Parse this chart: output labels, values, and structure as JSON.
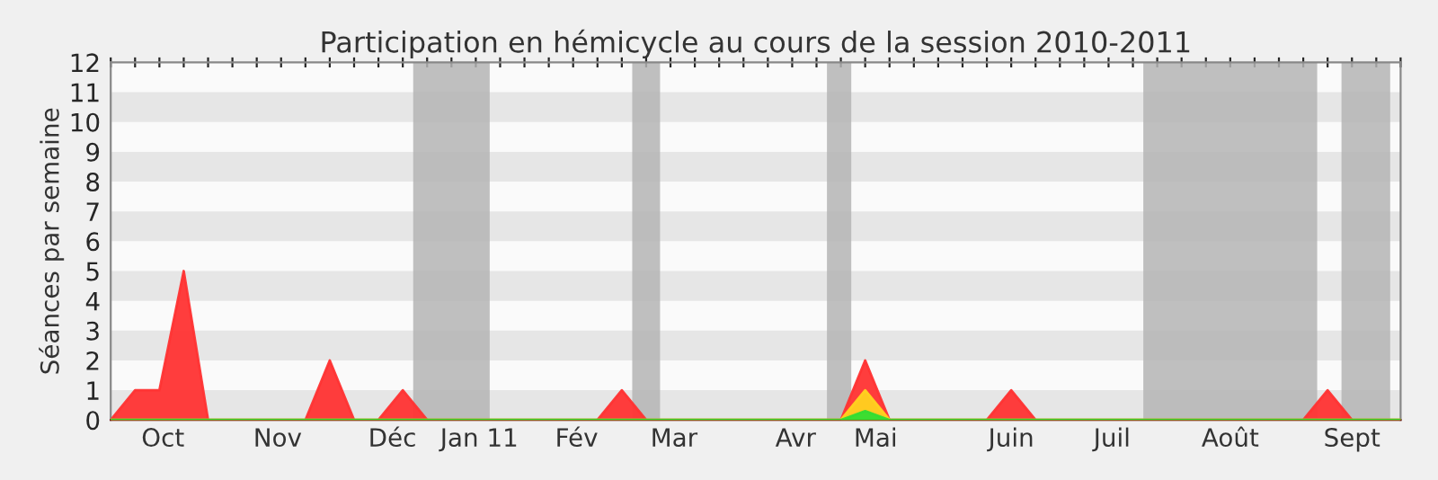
{
  "chart_data": {
    "type": "area",
    "title": "Participation en hémicycle au cours de la session 2010-2011",
    "ylabel": "Séances par semaine",
    "x": [
      "2010-09-27",
      "2010-10-04",
      "2010-10-11",
      "2010-10-18",
      "2010-10-25",
      "2010-11-01",
      "2010-11-08",
      "2010-11-15",
      "2010-11-22",
      "2010-11-29",
      "2010-12-06",
      "2010-12-13",
      "2010-12-20",
      "2010-12-27",
      "2011-01-03",
      "2011-01-10",
      "2011-01-17",
      "2011-01-24",
      "2011-01-31",
      "2011-02-07",
      "2011-02-14",
      "2011-02-21",
      "2011-02-28",
      "2011-03-07",
      "2011-03-14",
      "2011-03-21",
      "2011-03-28",
      "2011-04-04",
      "2011-04-11",
      "2011-04-18",
      "2011-04-25",
      "2011-05-02",
      "2011-05-09",
      "2011-05-16",
      "2011-05-23",
      "2011-05-30",
      "2011-06-06",
      "2011-06-13",
      "2011-06-20",
      "2011-06-27",
      "2011-07-04",
      "2011-07-11",
      "2011-07-18",
      "2011-07-25",
      "2011-08-01",
      "2011-08-08",
      "2011-08-15",
      "2011-08-22",
      "2011-08-29",
      "2011-09-05",
      "2011-09-12",
      "2011-09-19",
      "2011-09-26",
      "2011-10-03"
    ],
    "series": [
      {
        "color": "#ff3333",
        "values": [
          0,
          1,
          1,
          5,
          0,
          0,
          0,
          0,
          0,
          2,
          0,
          0,
          1,
          0,
          0,
          0,
          0,
          0,
          0,
          0,
          0,
          1,
          0,
          0,
          0,
          0,
          0,
          0,
          0,
          0,
          0,
          2,
          0,
          0,
          0,
          0,
          0,
          1,
          0,
          0,
          0,
          0,
          0,
          0,
          0,
          0,
          0,
          0,
          0,
          0,
          1,
          0,
          0,
          0
        ]
      },
      {
        "color": "#ffd21f",
        "values": [
          0,
          0,
          0,
          0,
          0,
          0,
          0,
          0,
          0,
          0,
          0,
          0,
          0,
          0,
          0,
          0,
          0,
          0,
          0,
          0,
          0,
          0,
          0,
          0,
          0,
          0,
          0,
          0,
          0,
          0,
          0,
          1,
          0,
          0,
          0,
          0,
          0,
          0,
          0,
          0,
          0,
          0,
          0,
          0,
          0,
          0,
          0,
          0,
          0,
          0,
          0,
          0,
          0,
          0
        ]
      },
      {
        "color": "#33dd33",
        "values": [
          0,
          0,
          0,
          0,
          0,
          0,
          0,
          0,
          0,
          0,
          0,
          0,
          0,
          0,
          0,
          0,
          0,
          0,
          0,
          0,
          0,
          0,
          0,
          0,
          0,
          0,
          0,
          0,
          0,
          0,
          0,
          0.3,
          0,
          0,
          0,
          0,
          0,
          0,
          0,
          0,
          0,
          0,
          0,
          0,
          0,
          0,
          0,
          0,
          0,
          0,
          0,
          0,
          0,
          0
        ]
      }
    ],
    "bands": [
      {
        "axis": "x",
        "from": "2010-12-23",
        "to": "2011-01-14",
        "color": "#b4b4b4"
      },
      {
        "axis": "x",
        "from": "2011-02-24",
        "to": "2011-03-04",
        "color": "#b4b4b4"
      },
      {
        "axis": "x",
        "from": "2011-04-21",
        "to": "2011-04-28",
        "color": "#b4b4b4"
      },
      {
        "axis": "x",
        "from": "2011-07-21",
        "to": "2011-09-09",
        "color": "#b4b4b4"
      },
      {
        "axis": "x",
        "from": "2011-09-16",
        "to": "2011-09-30",
        "color": "#b4b4b4"
      }
    ],
    "xlim": [
      "2010-09-27",
      "2011-10-03"
    ],
    "xticks": [
      {
        "value": "2010-09-27",
        "label": null
      },
      {
        "value": "2010-10-04",
        "label": null
      },
      {
        "value": "2010-10-11",
        "label": null
      },
      {
        "value": "2010-10-18",
        "label": null
      },
      {
        "value": "2010-10-25",
        "label": null
      },
      {
        "value": "2010-11-01",
        "label": null
      },
      {
        "value": "2010-11-08",
        "label": null
      },
      {
        "value": "2010-11-15",
        "label": null
      },
      {
        "value": "2010-11-22",
        "label": null
      },
      {
        "value": "2010-11-29",
        "label": null
      },
      {
        "value": "2010-12-06",
        "label": null
      },
      {
        "value": "2010-12-13",
        "label": null
      },
      {
        "value": "2010-12-20",
        "label": null
      },
      {
        "value": "2010-12-27",
        "label": null
      },
      {
        "value": "2011-01-03",
        "label": null
      },
      {
        "value": "2011-01-10",
        "label": null
      },
      {
        "value": "2011-01-17",
        "label": null
      },
      {
        "value": "2011-01-24",
        "label": null
      },
      {
        "value": "2011-01-31",
        "label": null
      },
      {
        "value": "2011-02-07",
        "label": null
      },
      {
        "value": "2011-02-14",
        "label": null
      },
      {
        "value": "2011-02-21",
        "label": null
      },
      {
        "value": "2011-02-28",
        "label": null
      },
      {
        "value": "2011-03-07",
        "label": null
      },
      {
        "value": "2011-03-14",
        "label": null
      },
      {
        "value": "2011-03-21",
        "label": null
      },
      {
        "value": "2011-03-28",
        "label": null
      },
      {
        "value": "2011-04-04",
        "label": null
      },
      {
        "value": "2011-04-11",
        "label": null
      },
      {
        "value": "2011-04-18",
        "label": null
      },
      {
        "value": "2011-04-25",
        "label": null
      },
      {
        "value": "2011-05-02",
        "label": null
      },
      {
        "value": "2011-05-09",
        "label": null
      },
      {
        "value": "2011-05-16",
        "label": null
      },
      {
        "value": "2011-05-23",
        "label": null
      },
      {
        "value": "2011-05-30",
        "label": null
      },
      {
        "value": "2011-06-06",
        "label": null
      },
      {
        "value": "2011-06-13",
        "label": null
      },
      {
        "value": "2011-06-20",
        "label": null
      },
      {
        "value": "2011-06-27",
        "label": null
      },
      {
        "value": "2011-07-04",
        "label": null
      },
      {
        "value": "2011-07-11",
        "label": null
      },
      {
        "value": "2011-07-18",
        "label": null
      },
      {
        "value": "2011-07-25",
        "label": null
      },
      {
        "value": "2011-08-01",
        "label": null
      },
      {
        "value": "2011-08-08",
        "label": null
      },
      {
        "value": "2011-08-15",
        "label": null
      },
      {
        "value": "2011-08-22",
        "label": null
      },
      {
        "value": "2011-08-29",
        "label": null
      },
      {
        "value": "2011-09-05",
        "label": null
      },
      {
        "value": "2011-09-12",
        "label": null
      },
      {
        "value": "2011-09-19",
        "label": null
      },
      {
        "value": "2011-09-26",
        "label": null
      },
      {
        "value": "2011-10-03",
        "label": null
      },
      {
        "value": "2010-10-12",
        "label": "Oct"
      },
      {
        "value": "2010-11-14",
        "label": "Nov"
      },
      {
        "value": "2010-12-17",
        "label": "Déc"
      },
      {
        "value": "2011-01-11",
        "label": "Jan 11"
      },
      {
        "value": "2011-02-08",
        "label": "Fév"
      },
      {
        "value": "2011-03-08",
        "label": "Mar"
      },
      {
        "value": "2011-04-12",
        "label": "Avr"
      },
      {
        "value": "2011-05-05",
        "label": "Mai"
      },
      {
        "value": "2011-06-13",
        "label": "Juin"
      },
      {
        "value": "2011-07-12",
        "label": "Juil"
      },
      {
        "value": "2011-08-15",
        "label": "Août"
      },
      {
        "value": "2011-09-19",
        "label": "Sept"
      }
    ],
    "ylim": [
      0,
      12
    ],
    "yticks": [
      0,
      1,
      2,
      3,
      4,
      5,
      6,
      7,
      8,
      9,
      10,
      11,
      12
    ],
    "legend": false
  }
}
